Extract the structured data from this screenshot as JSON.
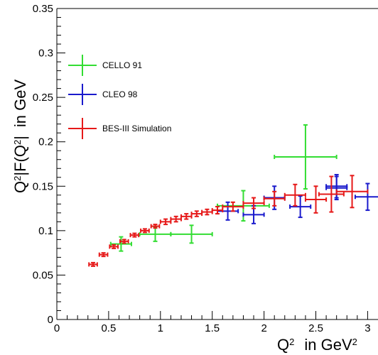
{
  "chart_data": {
    "type": "scatter",
    "xlabel_main": "Q",
    "xlabel_sup": "2",
    "xlabel_unit": "in GeV",
    "xlabel_unit_sup": "2",
    "ylabel_parts": [
      "Q",
      "2",
      "|F(Q",
      "2",
      "|",
      "in GeV"
    ],
    "xlim": [
      0,
      3.1
    ],
    "ylim": [
      0,
      0.35
    ],
    "x_ticks": [
      0,
      0.5,
      1,
      1.5,
      2,
      2.5,
      3
    ],
    "x_tick_labels": [
      "0",
      "0.5",
      "1",
      "1.5",
      "2",
      "2.5",
      "3"
    ],
    "y_ticks": [
      0,
      0.05,
      0.1,
      0.15,
      0.2,
      0.25,
      0.3,
      0.35
    ],
    "y_tick_labels": [
      "0",
      "0.05",
      "0.1",
      "0.15",
      "0.2",
      "0.25",
      "0.3",
      "0.35"
    ],
    "legend_position": "top-left",
    "series": [
      {
        "name": "CELLO 91",
        "color": "#33dd33",
        "points": [
          {
            "x": 0.62,
            "y": 0.085,
            "xerr": 0.1,
            "yerr": 0.008
          },
          {
            "x": 0.95,
            "y": 0.096,
            "xerr": 0.15,
            "yerr": 0.008
          },
          {
            "x": 1.3,
            "y": 0.096,
            "xerr": 0.2,
            "yerr": 0.01
          },
          {
            "x": 1.8,
            "y": 0.128,
            "xerr": 0.25,
            "yerr": 0.017
          },
          {
            "x": 2.4,
            "y": 0.183,
            "xerr": 0.3,
            "yerr": 0.036
          }
        ]
      },
      {
        "name": "CLEO 98",
        "color": "#1a1acc",
        "points": [
          {
            "x": 1.65,
            "y": 0.122,
            "xerr": 0.1,
            "yerr": 0.01
          },
          {
            "x": 1.9,
            "y": 0.118,
            "xerr": 0.1,
            "yerr": 0.01
          },
          {
            "x": 2.1,
            "y": 0.137,
            "xerr": 0.1,
            "yerr": 0.013
          },
          {
            "x": 2.35,
            "y": 0.127,
            "xerr": 0.1,
            "yerr": 0.012
          },
          {
            "x": 2.7,
            "y": 0.15,
            "xerr": 0.1,
            "yerr": 0.013
          },
          {
            "x": 2.7,
            "y": 0.148,
            "xerr": 0.1,
            "yerr": 0.013
          },
          {
            "x": 3.0,
            "y": 0.138,
            "xerr": 0.12,
            "yerr": 0.015
          }
        ]
      },
      {
        "name": "BES-III Simulation",
        "color": "#e61919",
        "points": [
          {
            "x": 0.35,
            "y": 0.062,
            "xerr": 0.04,
            "yerr": 0.002
          },
          {
            "x": 0.45,
            "y": 0.073,
            "xerr": 0.04,
            "yerr": 0.002
          },
          {
            "x": 0.55,
            "y": 0.082,
            "xerr": 0.04,
            "yerr": 0.002
          },
          {
            "x": 0.65,
            "y": 0.088,
            "xerr": 0.04,
            "yerr": 0.002
          },
          {
            "x": 0.75,
            "y": 0.095,
            "xerr": 0.04,
            "yerr": 0.002
          },
          {
            "x": 0.85,
            "y": 0.1,
            "xerr": 0.04,
            "yerr": 0.002
          },
          {
            "x": 0.95,
            "y": 0.105,
            "xerr": 0.04,
            "yerr": 0.002
          },
          {
            "x": 1.05,
            "y": 0.11,
            "xerr": 0.05,
            "yerr": 0.003
          },
          {
            "x": 1.15,
            "y": 0.113,
            "xerr": 0.05,
            "yerr": 0.003
          },
          {
            "x": 1.25,
            "y": 0.116,
            "xerr": 0.05,
            "yerr": 0.003
          },
          {
            "x": 1.35,
            "y": 0.119,
            "xerr": 0.05,
            "yerr": 0.003
          },
          {
            "x": 1.45,
            "y": 0.121,
            "xerr": 0.05,
            "yerr": 0.003
          },
          {
            "x": 1.55,
            "y": 0.123,
            "xerr": 0.05,
            "yerr": 0.004
          },
          {
            "x": 1.7,
            "y": 0.127,
            "xerr": 0.1,
            "yerr": 0.005
          },
          {
            "x": 1.9,
            "y": 0.131,
            "xerr": 0.1,
            "yerr": 0.006
          },
          {
            "x": 2.1,
            "y": 0.136,
            "xerr": 0.1,
            "yerr": 0.008
          },
          {
            "x": 2.3,
            "y": 0.14,
            "xerr": 0.1,
            "yerr": 0.012
          },
          {
            "x": 2.5,
            "y": 0.135,
            "xerr": 0.1,
            "yerr": 0.015
          },
          {
            "x": 2.65,
            "y": 0.141,
            "xerr": 0.12,
            "yerr": 0.02
          },
          {
            "x": 2.85,
            "y": 0.144,
            "xerr": 0.15,
            "yerr": 0.018
          }
        ]
      }
    ]
  }
}
